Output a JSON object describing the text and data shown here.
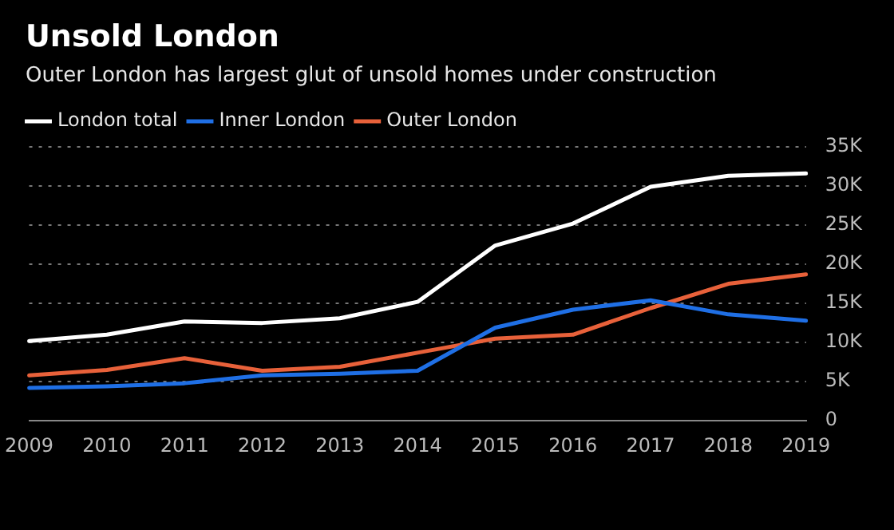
{
  "chart_data": {
    "type": "line",
    "title": "Unsold London",
    "subtitle": "Outer London has largest glut of unsold homes under construction",
    "categories": [
      "2009",
      "2010",
      "2011",
      "2012",
      "2013",
      "2014",
      "2015",
      "2016",
      "2017",
      "2018",
      "2019"
    ],
    "series": [
      {
        "name": "London total",
        "color": "#ffffff",
        "values": [
          10.2,
          11.0,
          12.7,
          12.5,
          13.1,
          15.2,
          22.4,
          25.2,
          29.9,
          31.3,
          31.6
        ]
      },
      {
        "name": "Inner London",
        "color": "#1f6fe5",
        "values": [
          4.2,
          4.4,
          4.8,
          5.8,
          6.0,
          6.4,
          11.9,
          14.2,
          15.4,
          13.6,
          12.8
        ]
      },
      {
        "name": "Outer London",
        "color": "#e8613a",
        "values": [
          5.8,
          6.5,
          8.0,
          6.4,
          6.9,
          8.7,
          10.5,
          11.0,
          14.4,
          17.5,
          18.7
        ]
      }
    ],
    "ylim": [
      0,
      35
    ],
    "yticks": [
      0,
      {
        "value": 5,
        "label": "5K"
      },
      {
        "value": 10,
        "label": "10K"
      },
      {
        "value": 15,
        "label": "15K"
      },
      {
        "value": 20,
        "label": "20K"
      },
      {
        "value": 25,
        "label": "25K"
      },
      {
        "value": 30,
        "label": "30K"
      },
      {
        "value": 35,
        "label": "35K"
      }
    ],
    "grid": "y",
    "legend": "top left",
    "marker": "none",
    "line_style": "solid"
  }
}
